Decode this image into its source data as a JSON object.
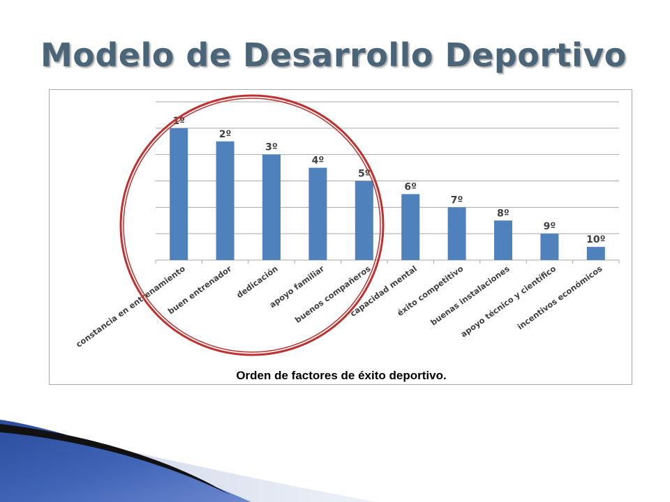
{
  "slide": {
    "title": "Modelo de Desarrollo Deportivo",
    "caption": "Orden de factores de éxito deportivo."
  },
  "chart_data": {
    "type": "bar",
    "categories": [
      "constancia en entrenamiento",
      "buen entrenador",
      "dedicación",
      "apoyo familiar",
      "buenos compañeros",
      "capacidad mental",
      "éxito competitivo",
      "buenas instalaciones",
      "apoyo técnico y científico",
      "incentivos económicos"
    ],
    "values": [
      10,
      9,
      8,
      7,
      6,
      5,
      4,
      3,
      2,
      1
    ],
    "data_labels": [
      "1º",
      "2º",
      "3º",
      "4º",
      "5º",
      "6º",
      "7º",
      "8º",
      "9º",
      "10º"
    ],
    "ylim": [
      0,
      12
    ],
    "grid": true,
    "legend": "none",
    "colors": {
      "bar": "#4f81bd",
      "grid": "#a8a8a8",
      "highlight_circle": "#c0302f"
    }
  }
}
